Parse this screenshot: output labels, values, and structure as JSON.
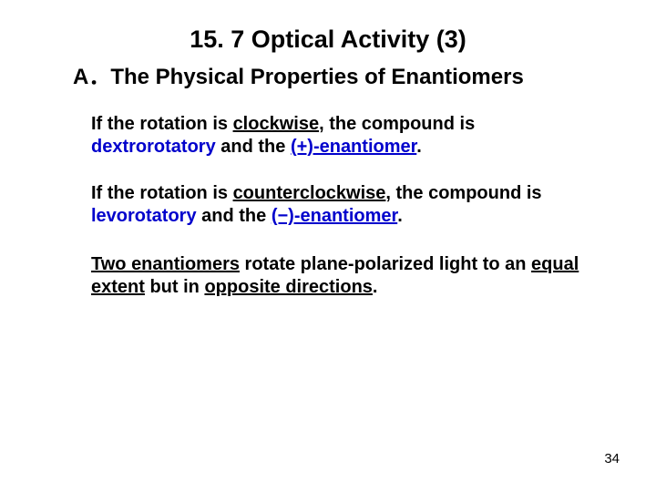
{
  "title": "15. 7 Optical Activity (3)",
  "subtitle": "A．The Physical Properties of Enantiomers",
  "p1": {
    "t1": "If the rotation is ",
    "t2": "clockwise",
    "t3": ", the compound is ",
    "t4": "dextrorotatory",
    "t5": " and the ",
    "t6": "(+)-enantiomer",
    "t7": "."
  },
  "p2": {
    "t1": "If the rotation is ",
    "t2": "counterclockwise",
    "t3": ", the compound is ",
    "t4": "levorotatory",
    "t5": " and the ",
    "t6": "(−)-enantiomer",
    "t7": "."
  },
  "p3": {
    "t1": "Two enantiomers",
    "t2": " rotate plane-polarized light to an ",
    "t3": "equal extent",
    "t4": " but in ",
    "t5": "opposite directions",
    "t6": "."
  },
  "pagenum": "34"
}
